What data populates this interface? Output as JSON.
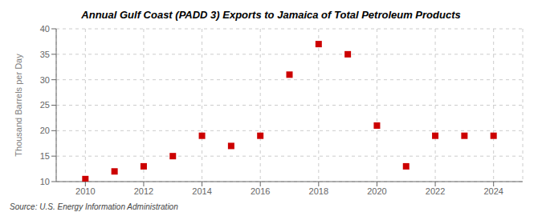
{
  "chart_data": {
    "type": "scatter",
    "title": "Annual Gulf Coast (PADD 3) Exports to Jamaica of Total Petroleum Products",
    "ylabel": "Thousand Barrels per Day",
    "source": "Source: U.S. Energy Information Administration",
    "x": [
      2010,
      2011,
      2012,
      2013,
      2014,
      2015,
      2016,
      2017,
      2018,
      2019,
      2020,
      2021,
      2022,
      2023,
      2024
    ],
    "values": [
      10.5,
      12.0,
      13.0,
      15.0,
      19.0,
      17.0,
      19.0,
      31.0,
      37.0,
      35.0,
      21.0,
      13.0,
      19.0,
      19.0,
      19.0
    ],
    "color": "#cc0000",
    "marker": "square",
    "xlim": [
      2009,
      2025
    ],
    "xticks": [
      2010,
      2012,
      2014,
      2016,
      2018,
      2020,
      2022,
      2024
    ],
    "ylim": [
      10,
      40
    ],
    "yticks": [
      10,
      15,
      20,
      25,
      30,
      35,
      40
    ],
    "grid": true
  }
}
